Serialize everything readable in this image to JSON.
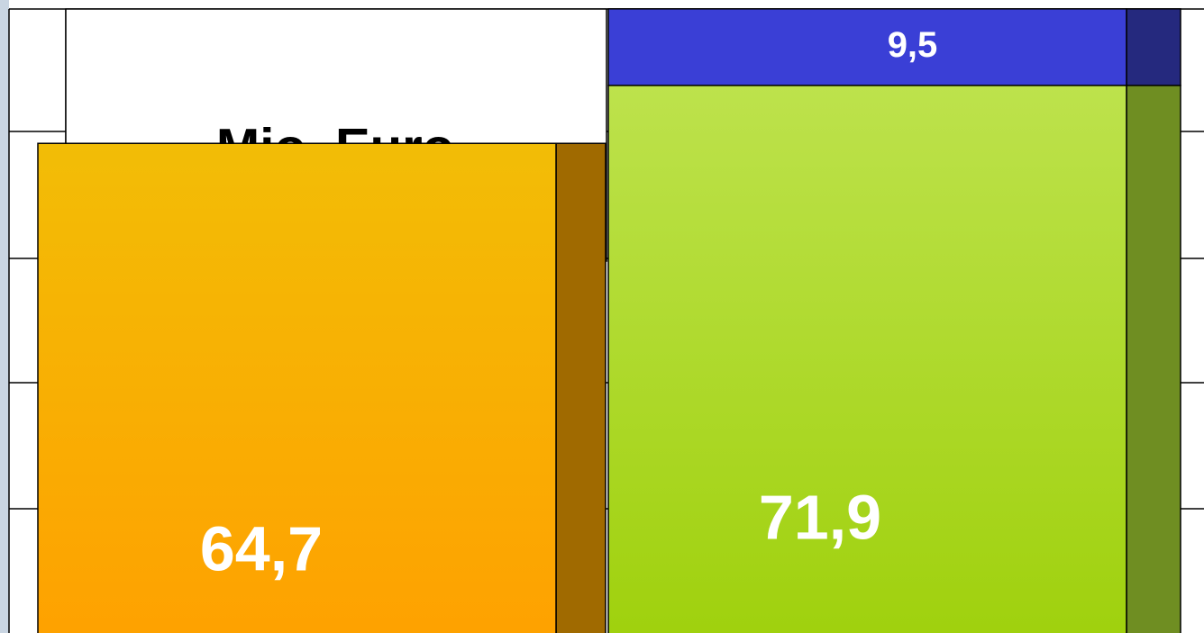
{
  "chart_data": {
    "type": "bar",
    "stacked": true,
    "ylabel": "Mio. Euro",
    "categories": [
      null,
      null
    ],
    "series": [
      {
        "colors": [
          "#fba000",
          "#a4d40e"
        ],
        "values": [
          64.7,
          71.9
        ],
        "value_labels": [
          "64,7",
          "71,9"
        ]
      },
      {
        "color": "#3a3fd6",
        "values": [
          null,
          9.5
        ],
        "value_labels": [
          null,
          "9,5"
        ]
      }
    ],
    "ylim": [
      0,
      82.5
    ]
  }
}
